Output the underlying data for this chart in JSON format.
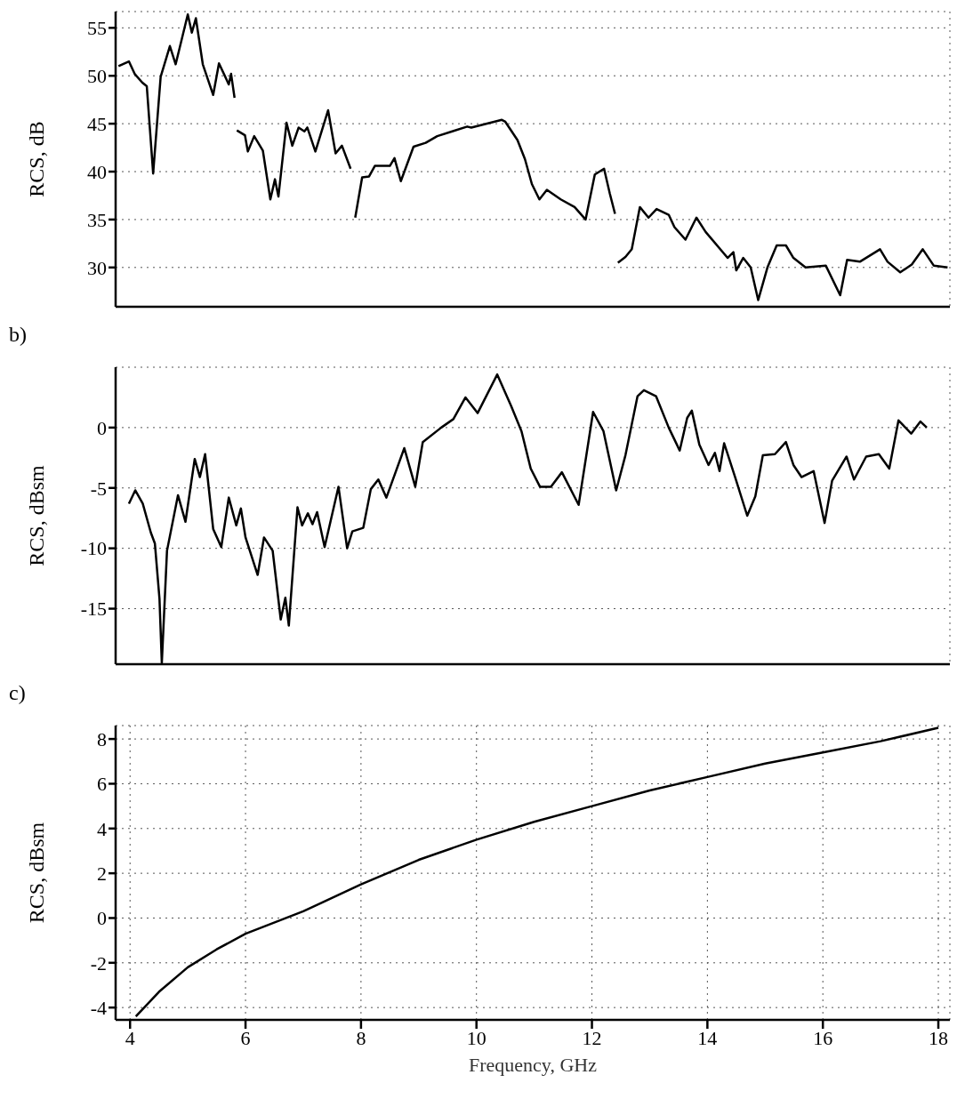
{
  "chart_data": [
    {
      "type": "line",
      "ylabel": "RCS, dB",
      "xlim": [
        3.75,
        18.2
      ],
      "xticks": [
        4,
        6,
        8,
        10,
        12,
        14,
        16,
        18
      ],
      "ylim": [
        25.9,
        56.7
      ],
      "yticks": [
        30,
        35,
        40,
        45,
        50,
        55
      ],
      "grid": true,
      "tick_labels": "y",
      "color": "#000000",
      "x": [
        3.8,
        3.98,
        4.08,
        4.21,
        4.29,
        4.4,
        4.53,
        4.69,
        4.79,
        5.0,
        5.07,
        5.14,
        5.26,
        5.44,
        5.54,
        5.71,
        5.75,
        5.81,
        5.83,
        5.85,
        5.99,
        6.04,
        6.15,
        6.3,
        6.43,
        6.51,
        6.57,
        6.71,
        6.81,
        6.92,
        7.02,
        7.07,
        7.21,
        7.43,
        7.56,
        7.67,
        7.82,
        7.86,
        7.9,
        8.02,
        8.14,
        8.24,
        8.5,
        8.58,
        8.69,
        8.91,
        9.12,
        9.32,
        9.58,
        9.84,
        9.91,
        10.44,
        10.5,
        10.71,
        10.84,
        10.96,
        11.09,
        11.22,
        11.46,
        11.7,
        11.89,
        12.05,
        12.21,
        12.31,
        12.4,
        12.43,
        12.45,
        12.58,
        12.69,
        12.83,
        12.98,
        13.12,
        13.33,
        13.43,
        13.62,
        13.81,
        13.97,
        14.35,
        14.45,
        14.5,
        14.62,
        14.75,
        14.88,
        15.04,
        15.2,
        15.36,
        15.49,
        15.7,
        16.05,
        16.3,
        16.42,
        16.64,
        16.99,
        17.12,
        17.34,
        17.54,
        17.73,
        17.92,
        18.16
      ],
      "values": [
        51.0,
        51.5,
        50.2,
        49.3,
        48.9,
        39.8,
        49.9,
        53.1,
        51.2,
        56.4,
        54.5,
        56.0,
        51.2,
        48.0,
        51.3,
        49.1,
        50.2,
        47.7,
        null,
        44.3,
        43.8,
        42.1,
        43.7,
        42.2,
        37.1,
        39.2,
        37.4,
        45.1,
        42.7,
        44.6,
        44.2,
        44.6,
        42.1,
        46.4,
        41.9,
        42.7,
        40.3,
        null,
        35.2,
        39.4,
        39.5,
        40.6,
        40.6,
        41.4,
        39.0,
        42.6,
        43.0,
        43.7,
        44.2,
        44.7,
        44.6,
        45.4,
        45.2,
        43.3,
        41.3,
        38.7,
        37.1,
        38.1,
        37.1,
        36.3,
        35.0,
        39.7,
        40.3,
        37.7,
        35.6,
        null,
        30.5,
        31.1,
        31.9,
        36.3,
        35.2,
        36.1,
        35.5,
        34.2,
        32.9,
        35.2,
        33.7,
        31.0,
        31.6,
        29.7,
        31.0,
        30.0,
        26.6,
        30.0,
        32.3,
        32.3,
        31.0,
        30.0,
        30.2,
        27.1,
        30.8,
        30.6,
        31.9,
        30.6,
        29.5,
        30.3,
        31.9,
        30.2,
        30.0
      ]
    },
    {
      "type": "line",
      "ylabel": "RCS, dBsm",
      "annotations": [
        "b)"
      ],
      "xlim": [
        3.75,
        18.2
      ],
      "xticks": [
        4,
        6,
        8,
        10,
        12,
        14,
        16,
        18
      ],
      "ylim": [
        -19.6,
        5
      ],
      "yticks": [
        -15,
        -10,
        -5,
        0
      ],
      "grid": true,
      "tick_labels": "y",
      "color": "#000000",
      "x": [
        3.98,
        4.09,
        4.22,
        4.36,
        4.43,
        4.51,
        4.55,
        4.64,
        4.83,
        4.96,
        5.12,
        5.21,
        5.3,
        5.44,
        5.58,
        5.71,
        5.84,
        5.92,
        6.0,
        6.21,
        6.32,
        6.47,
        6.61,
        6.69,
        6.75,
        6.9,
        6.98,
        7.08,
        7.16,
        7.24,
        7.37,
        7.61,
        7.76,
        7.85,
        8.04,
        8.17,
        8.3,
        8.44,
        8.75,
        8.94,
        9.07,
        9.39,
        9.6,
        9.81,
        10.02,
        10.36,
        10.6,
        10.78,
        10.94,
        11.1,
        11.29,
        11.48,
        11.77,
        12.02,
        12.2,
        12.42,
        12.58,
        12.79,
        12.9,
        13.11,
        13.33,
        13.52,
        13.65,
        13.73,
        13.86,
        14.02,
        14.13,
        14.21,
        14.29,
        14.48,
        14.69,
        14.83,
        14.96,
        15.17,
        15.36,
        15.49,
        15.63,
        15.84,
        16.03,
        16.16,
        16.41,
        16.54,
        16.75,
        16.97,
        17.15,
        17.31,
        17.53,
        17.69,
        17.8
      ],
      "values": [
        -6.3,
        -5.2,
        -6.3,
        -8.7,
        -9.6,
        -14.2,
        -19.5,
        -10.2,
        -5.6,
        -7.8,
        -2.6,
        -4.1,
        -2.2,
        -8.4,
        -9.9,
        -5.8,
        -8.1,
        -6.7,
        -9.1,
        -12.2,
        -9.1,
        -10.2,
        -15.9,
        -14.1,
        -16.4,
        -6.6,
        -8.1,
        -7.1,
        -8.0,
        -7.0,
        -9.9,
        -4.9,
        -10.0,
        -8.6,
        -8.3,
        -5.1,
        -4.3,
        -5.8,
        -1.7,
        -4.9,
        -1.2,
        0.0,
        0.7,
        2.5,
        1.2,
        4.4,
        1.8,
        -0.3,
        -3.4,
        -4.9,
        -4.9,
        -3.7,
        -6.4,
        1.3,
        -0.3,
        -5.2,
        -2.3,
        2.6,
        3.1,
        2.6,
        0.0,
        -1.9,
        0.8,
        1.4,
        -1.4,
        -3.1,
        -2.1,
        -3.6,
        -1.3,
        -4.1,
        -7.3,
        -5.7,
        -2.3,
        -2.2,
        -1.2,
        -3.1,
        -4.1,
        -3.6,
        -7.9,
        -4.4,
        -2.4,
        -4.3,
        -2.4,
        -2.2,
        -3.4,
        0.6,
        -0.5,
        0.5,
        0.0
      ]
    },
    {
      "type": "line",
      "xlabel": "Frequency, GHz",
      "ylabel": "RCS, dBsm",
      "annotations": [
        "c)"
      ],
      "xlim": [
        3.75,
        18.2
      ],
      "xticks": [
        4,
        6,
        8,
        10,
        12,
        14,
        16,
        18
      ],
      "ylim": [
        -4.55,
        8.6
      ],
      "yticks": [
        -4,
        -2,
        0,
        2,
        4,
        6,
        8
      ],
      "grid": true,
      "color": "#000000",
      "x": [
        4.1,
        4.5,
        5,
        5.5,
        6,
        7,
        8,
        9,
        10,
        11,
        12,
        13,
        14,
        15,
        16,
        17,
        18
      ],
      "values": [
        -4.4,
        -3.3,
        -2.2,
        -1.4,
        -0.7,
        0.3,
        1.5,
        2.6,
        3.5,
        4.3,
        5.0,
        5.7,
        6.3,
        6.9,
        7.4,
        7.9,
        8.5
      ]
    }
  ]
}
